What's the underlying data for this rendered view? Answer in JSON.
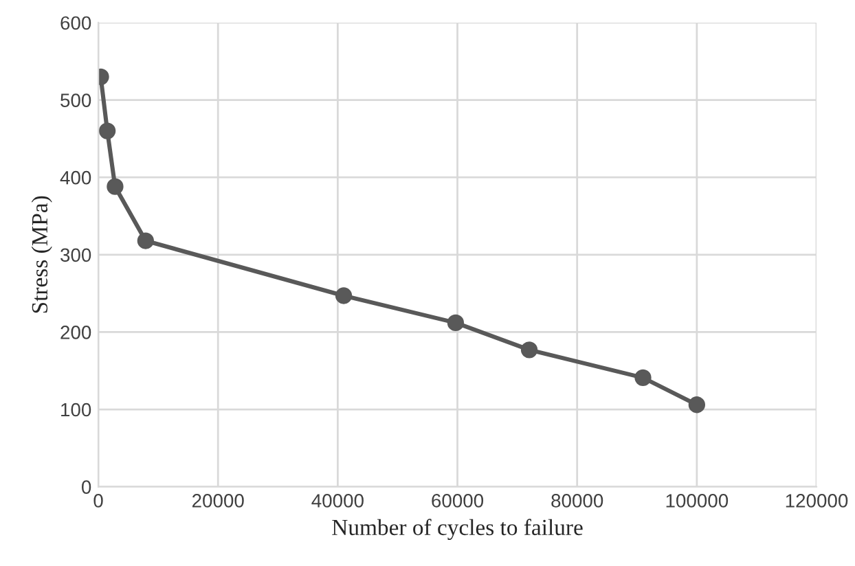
{
  "chart_data": {
    "type": "line",
    "xlabel": "Number of cycles to failure",
    "ylabel": "Stress (MPa)",
    "x": [
      400,
      1500,
      2800,
      7900,
      41000,
      59700,
      72000,
      91000,
      100000
    ],
    "series": [
      {
        "color": "#595959",
        "values": [
          530,
          460,
          388,
          318,
          247,
          212,
          177,
          141,
          106
        ]
      }
    ],
    "xlim": [
      0,
      120000
    ],
    "xticks": [
      0,
      20000,
      40000,
      60000,
      80000,
      100000,
      120000
    ],
    "ylim": [
      0,
      600
    ],
    "yticks": [
      0,
      100,
      200,
      300,
      400,
      500,
      600
    ],
    "grid": true,
    "marker": "circle",
    "line_style": "solid"
  }
}
